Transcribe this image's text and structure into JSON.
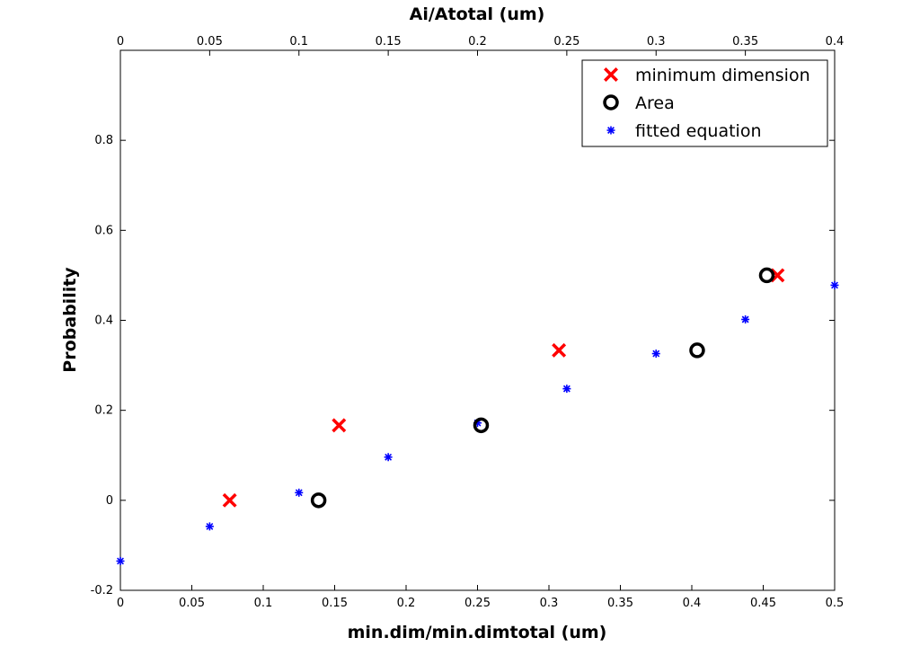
{
  "chart_data": {
    "type": "scatter",
    "ylabel": "Probability",
    "xlabel_bottom": "min.dim/min.dimtotal (um)",
    "xlabel_top": "Ai/Atotal (um)",
    "xlim_bottom": [
      0,
      0.5
    ],
    "xlim_top": [
      0,
      0.4
    ],
    "ylim": [
      -0.2,
      1.0
    ],
    "x_ticks_bottom": [
      0,
      0.05,
      0.1,
      0.15,
      0.2,
      0.25,
      0.3,
      0.35,
      0.4,
      0.45,
      0.5
    ],
    "x_tick_labels_bottom": [
      "0",
      "0.05",
      "0.1",
      "0.15",
      "0.2",
      "0.25",
      "0.3",
      "0.35",
      "0.4",
      "0.45",
      "0.5"
    ],
    "x_ticks_top": [
      0,
      0.05,
      0.1,
      0.15,
      0.2,
      0.25,
      0.3,
      0.35,
      0.4
    ],
    "x_tick_labels_top": [
      "0",
      "0.05",
      "0.1",
      "0.15",
      "0.2",
      "0.25",
      "0.3",
      "0.35",
      "0.4"
    ],
    "y_ticks": [
      -0.2,
      0,
      0.2,
      0.4,
      0.6,
      0.8
    ],
    "y_tick_labels": [
      "-0.2",
      "0",
      "0.2",
      "0.4",
      "0.6",
      "0.8"
    ],
    "legend_position": "top-right",
    "series": [
      {
        "name": "minimum dimension",
        "marker": "x",
        "color": "#ff0000",
        "x_axis": "bottom",
        "x": [
          0.0765,
          0.153,
          0.307,
          0.46
        ],
        "y": [
          0,
          0.1667,
          0.3333,
          0.5
        ]
      },
      {
        "name": "Area",
        "marker": "o",
        "color": "#000000",
        "x_axis": "top",
        "x": [
          0.111,
          0.202,
          0.323,
          0.362
        ],
        "y": [
          0,
          0.1667,
          0.3333,
          0.5
        ]
      },
      {
        "name": "fitted equation",
        "marker": "*",
        "color": "#0000ff",
        "x_axis": "bottom",
        "x": [
          0,
          0.0625,
          0.125,
          0.1875,
          0.25,
          0.3125,
          0.375,
          0.4375,
          0.5
        ],
        "y": [
          -0.135,
          -0.058,
          0.017,
          0.096,
          0.172,
          0.248,
          0.326,
          0.402,
          0.478
        ]
      }
    ]
  }
}
